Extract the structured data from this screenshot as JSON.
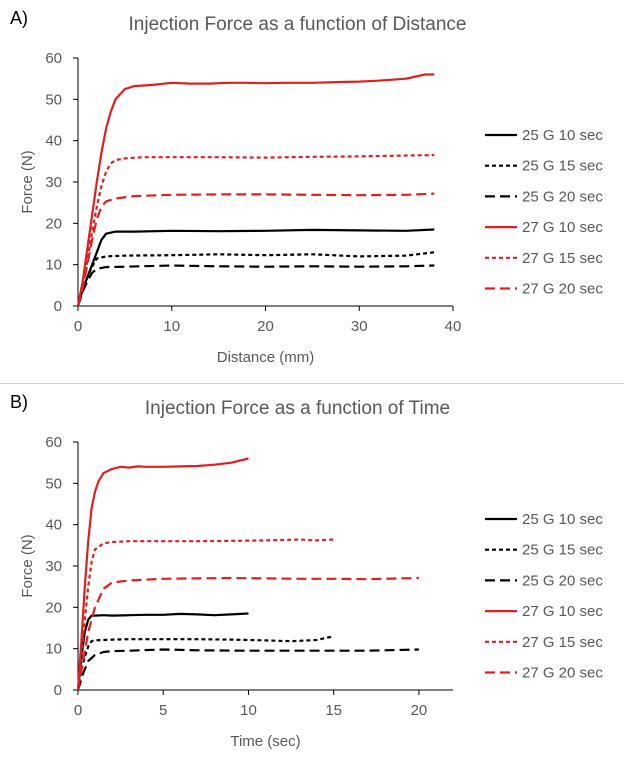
{
  "chart_data": [
    {
      "panel_label": "A)",
      "type": "line",
      "title": "Injection Force as a function of Distance",
      "xlabel": "Distance (mm)",
      "ylabel": "Force (N)",
      "xlim": [
        0,
        40
      ],
      "ylim": [
        0,
        60
      ],
      "xticks": [
        0,
        10,
        20,
        30,
        40
      ],
      "yticks": [
        0,
        10,
        20,
        30,
        40,
        50,
        60
      ],
      "grid": false,
      "legend_position": "right",
      "series": [
        {
          "name": "25 G 10 sec",
          "color": "#000000",
          "dash": "solid",
          "x": [
            0,
            0.5,
            1,
            1.5,
            2,
            2.5,
            3,
            4,
            6,
            10,
            15,
            20,
            25,
            30,
            35,
            38
          ],
          "y": [
            0,
            4,
            7,
            10,
            13,
            16,
            17.5,
            18,
            18,
            18.2,
            18.1,
            18.2,
            18.4,
            18.3,
            18.2,
            18.5
          ]
        },
        {
          "name": "25 G 15 sec",
          "color": "#000000",
          "dash": "short",
          "x": [
            0,
            0.5,
            1,
            1.5,
            2,
            3,
            5,
            10,
            15,
            20,
            25,
            30,
            35,
            38
          ],
          "y": [
            0,
            4,
            7,
            9.5,
            11.5,
            12,
            12.2,
            12.3,
            12.5,
            12.3,
            12.5,
            12,
            12.2,
            13
          ]
        },
        {
          "name": "25 G 20 sec",
          "color": "#000000",
          "dash": "long",
          "x": [
            0,
            0.5,
            1,
            1.5,
            2,
            3,
            5,
            10,
            15,
            20,
            25,
            30,
            35,
            38
          ],
          "y": [
            0,
            3.5,
            6,
            8,
            9,
            9.4,
            9.5,
            9.8,
            9.6,
            9.5,
            9.6,
            9.5,
            9.6,
            9.8
          ]
        },
        {
          "name": "27 G 10 sec",
          "color": "#e02020",
          "dash": "solid",
          "x": [
            0,
            0.5,
            1,
            1.5,
            2,
            2.5,
            3,
            3.5,
            4,
            5,
            6,
            8,
            10,
            12,
            14,
            16,
            18,
            20,
            22,
            25,
            28,
            30,
            32,
            35,
            37,
            38
          ],
          "y": [
            0,
            6,
            14,
            22,
            30,
            37,
            43,
            47,
            50,
            52.5,
            53.2,
            53.5,
            54,
            53.8,
            53.8,
            54,
            54,
            53.9,
            54,
            54,
            54.2,
            54.3,
            54.5,
            55,
            56,
            56
          ]
        },
        {
          "name": "27 G 15 sec",
          "color": "#e02020",
          "dash": "short",
          "x": [
            0,
            0.5,
            1,
            1.5,
            2,
            2.5,
            3,
            3.5,
            4,
            5,
            7,
            10,
            15,
            20,
            25,
            30,
            35,
            38
          ],
          "y": [
            0,
            5,
            11,
            18,
            24,
            29,
            32.5,
            34.5,
            35.3,
            35.7,
            36,
            36,
            36,
            35.9,
            36.1,
            36.2,
            36.4,
            36.5
          ]
        },
        {
          "name": "27 G 20 sec",
          "color": "#e02020",
          "dash": "long",
          "x": [
            0,
            0.5,
            1,
            1.5,
            2,
            2.5,
            3,
            4,
            6,
            10,
            15,
            20,
            25,
            30,
            35,
            38
          ],
          "y": [
            0,
            4.5,
            10,
            16,
            21,
            24,
            25.3,
            26,
            26.6,
            26.9,
            27,
            27,
            26.9,
            26.8,
            26.9,
            27.2
          ]
        }
      ]
    },
    {
      "panel_label": "B)",
      "type": "line",
      "title": "Injection Force as a function of Time",
      "xlabel": "Time (sec)",
      "ylabel": "Force (N)",
      "xlim": [
        0,
        22
      ],
      "ylim": [
        0,
        60
      ],
      "xticks": [
        0,
        5,
        10,
        15,
        20
      ],
      "yticks": [
        0,
        10,
        20,
        30,
        40,
        50,
        60
      ],
      "grid": false,
      "legend_position": "right",
      "series": [
        {
          "name": "25 G 10 sec",
          "color": "#000000",
          "dash": "solid",
          "x": [
            0,
            0.2,
            0.4,
            0.6,
            0.8,
            1,
            1.5,
            2,
            3,
            4,
            5,
            6,
            7,
            8,
            9,
            10
          ],
          "y": [
            0,
            8,
            14,
            17,
            18,
            18,
            18.1,
            18,
            18.1,
            18.2,
            18.2,
            18.4,
            18.3,
            18.1,
            18.3,
            18.5
          ]
        },
        {
          "name": "25 G 15 sec",
          "color": "#000000",
          "dash": "short",
          "x": [
            0,
            0.2,
            0.4,
            0.6,
            0.8,
            1,
            2,
            3,
            5,
            7,
            9,
            11,
            12.5,
            14,
            15
          ],
          "y": [
            0,
            5,
            8,
            10.5,
            11.8,
            12,
            12.2,
            12.3,
            12.3,
            12.3,
            12.2,
            12,
            11.8,
            12.1,
            13
          ]
        },
        {
          "name": "25 G 20 sec",
          "color": "#000000",
          "dash": "long",
          "x": [
            0,
            0.3,
            0.6,
            1,
            1.5,
            2,
            3,
            5,
            7,
            10,
            13,
            15,
            17,
            20
          ],
          "y": [
            0,
            4,
            7,
            8.5,
            9.2,
            9.4,
            9.5,
            9.8,
            9.6,
            9.5,
            9.5,
            9.5,
            9.5,
            9.8
          ]
        },
        {
          "name": "27 G 10 sec",
          "color": "#e02020",
          "dash": "solid",
          "x": [
            0,
            0.2,
            0.4,
            0.6,
            0.8,
            1,
            1.2,
            1.5,
            2,
            2.5,
            3,
            3.5,
            4,
            5,
            6,
            7,
            8,
            9,
            10
          ],
          "y": [
            0,
            12,
            25,
            36,
            44,
            48,
            50.5,
            52.5,
            53.5,
            54,
            53.8,
            54.1,
            54,
            54,
            54.1,
            54.2,
            54.5,
            55,
            56
          ]
        },
        {
          "name": "27 G 15 sec",
          "color": "#e02020",
          "dash": "short",
          "x": [
            0,
            0.2,
            0.4,
            0.6,
            0.8,
            1,
            1.5,
            2,
            3,
            5,
            7,
            9,
            11,
            13,
            14,
            15
          ],
          "y": [
            0,
            8,
            17,
            25,
            31,
            34,
            35.5,
            35.8,
            36,
            36,
            36,
            36.1,
            36.2,
            36.4,
            36.2,
            36.4
          ]
        },
        {
          "name": "27 G 20 sec",
          "color": "#e02020",
          "dash": "long",
          "x": [
            0,
            0.3,
            0.6,
            1,
            1.5,
            2,
            3,
            5,
            7,
            9,
            11,
            13,
            15,
            17,
            19,
            20
          ],
          "y": [
            0,
            7,
            14,
            20,
            24.5,
            26,
            26.5,
            26.9,
            27,
            27.1,
            27,
            26.9,
            26.9,
            26.8,
            27,
            27.1
          ]
        }
      ]
    }
  ]
}
